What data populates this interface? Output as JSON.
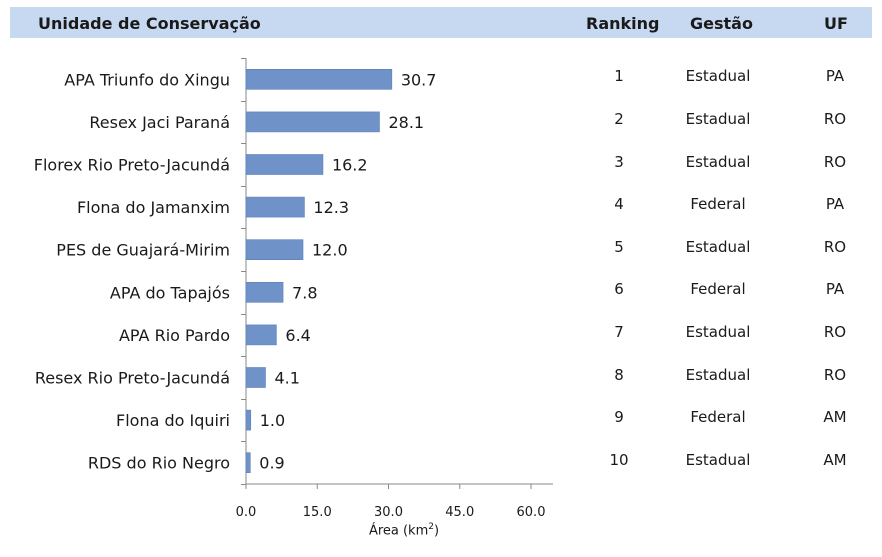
{
  "header": {
    "col_unidade": "Unidade de Conservação",
    "col_ranking": "Ranking",
    "col_gestao": "Gestão",
    "col_uf": "UF"
  },
  "colors": {
    "header_bg": "#c6d9f1",
    "bar": "#6f93c9",
    "bar_edge": "#5a7fb8",
    "axis": "#888888"
  },
  "chart_data": {
    "type": "bar",
    "orientation": "horizontal",
    "categories": [
      "APA  Triunfo do Xingu",
      "Resex  Jaci Paraná",
      "Florex Rio Preto-Jacundá",
      "Flona do Jamanxim",
      "PES de Guajará-Mirim",
      "APA do Tapajós",
      "APA  Rio Pardo",
      "Resex  Rio Preto-Jacundá",
      "Flona do Iquiri",
      "RDS do Rio Negro"
    ],
    "values": [
      30.7,
      28.1,
      16.2,
      12.3,
      12.0,
      7.8,
      6.4,
      4.1,
      1.0,
      0.9
    ],
    "value_labels": [
      "30.7",
      "28.1",
      "16.2",
      "12.3",
      "12.0",
      "7.8",
      "6.4",
      "4.1",
      "1.0",
      "0.9"
    ],
    "xlim": [
      0,
      65
    ],
    "xticks": [
      0,
      15,
      30,
      45,
      60
    ],
    "xtick_labels": [
      "0.0",
      "15.0",
      "30.0",
      "45.0",
      "60.0"
    ],
    "xlabel": "Área (km",
    "xlabel_sup": "2",
    "xlabel_close": ")",
    "grid": false
  },
  "table": {
    "ranking": [
      "1",
      "2",
      "3",
      "4",
      "5",
      "6",
      "7",
      "8",
      "9",
      "10"
    ],
    "gestao": [
      "Estadual",
      "Estadual",
      "Estadual",
      "Federal",
      "Estadual",
      "Federal",
      "Estadual",
      "Estadual",
      "Federal",
      "Estadual"
    ],
    "uf": [
      "PA",
      "RO",
      "RO",
      "PA",
      "RO",
      "PA",
      "RO",
      "RO",
      "AM",
      "AM"
    ]
  }
}
